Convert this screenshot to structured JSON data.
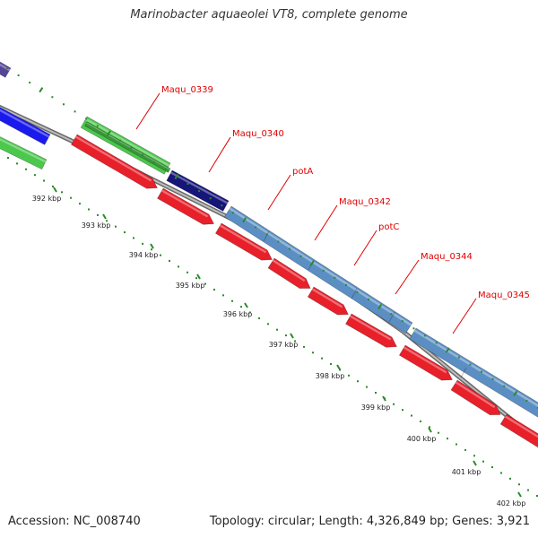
{
  "title": "Marinobacter aquaeolei VT8, complete genome",
  "footer": {
    "accession": "Accession: NC_008740",
    "summary": "Topology: circular; Length: 4,326,849 bp; Genes: 3,921"
  },
  "colors": {
    "backbone": "#8c8c8c",
    "cds": "#e8202a",
    "gene_steelblue": "#5b8fc4",
    "gene_green": "#4cc84c",
    "gene_darkgreen": "#3a963a",
    "gene_navy": "#15157a",
    "gene_blue": "#1a1aee",
    "gene_purple": "#55459a",
    "ticks": "#2a8a2a",
    "label": "#e00000"
  },
  "gene_labels": [
    "Maqu_0339",
    "Maqu_0340",
    "potA",
    "Maqu_0342",
    "potC",
    "Maqu_0344",
    "Maqu_0345"
  ],
  "kbp_ticks": [
    "392 kbp",
    "393 kbp",
    "394 kbp",
    "395 kbp",
    "396 kbp",
    "397 kbp",
    "398 kbp",
    "399 kbp",
    "400 kbp",
    "401 kbp",
    "402 kbp"
  ]
}
